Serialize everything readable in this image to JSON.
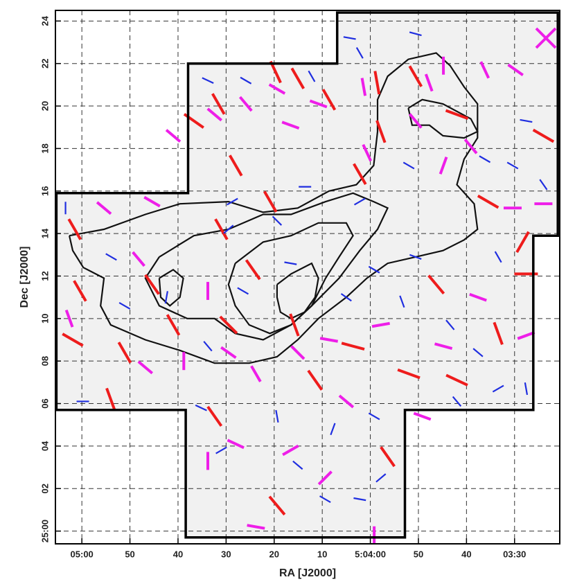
{
  "chart_data": {
    "type": "vector",
    "x_label": "RA [J2000]",
    "y_label": "Dec [J2000]",
    "xlim": [
      305.5,
      200.6
    ],
    "ylim": [
      -0.6,
      24.5
    ],
    "xticks": [
      {
        "value": 300,
        "label": "05:00"
      },
      {
        "value": 290,
        "label": "50"
      },
      {
        "value": 280,
        "label": "40"
      },
      {
        "value": 270,
        "label": "30"
      },
      {
        "value": 260,
        "label": "20"
      },
      {
        "value": 250,
        "label": "10"
      },
      {
        "value": 240,
        "label": "5:04:00"
      },
      {
        "value": 230,
        "label": "50"
      },
      {
        "value": 220,
        "label": "40"
      },
      {
        "value": 210,
        "label": "03:30"
      }
    ],
    "yticks": [
      {
        "value": 0,
        "label": "25:00"
      },
      {
        "value": 2,
        "label": "02"
      },
      {
        "value": 4,
        "label": "04"
      },
      {
        "value": 6,
        "label": "06"
      },
      {
        "value": 8,
        "label": "08"
      },
      10,
      12,
      14,
      16,
      18,
      20,
      22,
      24
    ],
    "grid": true,
    "boundary": {
      "x": [
        305.3,
        277.9,
        277.9,
        246.9,
        246.9,
        201.0,
        201.0,
        206.1,
        206.1,
        232.8,
        232.8,
        278.4,
        278.4,
        305.3
      ],
      "y": [
        15.9,
        15.9,
        22.0,
        22.0,
        24.4,
        24.4,
        13.9,
        13.9,
        5.7,
        5.7,
        -0.3,
        -0.3,
        5.7,
        5.7
      ]
    },
    "contour_color": "#111111",
    "contours": [
      {
        "x": [
          302.6,
          295.4,
          286.8,
          279.6,
          269.5,
          262.3,
          255.1,
          248.6,
          242.9,
          239.3,
          238.5,
          238.5,
          236.4,
          232.1,
          226.3,
          223.4,
          220.5,
          217.7,
          217.7,
          220.5,
          222.0,
          218.4,
          217.7,
          220.5,
          224.9,
          230.6,
          236.4,
          240.7,
          245.0,
          250.8,
          255.1,
          259.4,
          265.2,
          272.4,
          279.6,
          286.8,
          294.0,
          296.1,
          295.4,
          299.7,
          301.9,
          302.6
        ],
        "y": [
          13.9,
          14.2,
          14.9,
          15.4,
          15.5,
          15.0,
          15.2,
          16.0,
          16.3,
          17.2,
          18.8,
          20.3,
          21.4,
          22.2,
          22.5,
          21.9,
          20.9,
          20.1,
          18.5,
          17.5,
          16.3,
          15.4,
          14.2,
          13.7,
          13.2,
          12.9,
          12.6,
          11.9,
          11.0,
          10.0,
          9.0,
          8.2,
          7.9,
          7.9,
          8.5,
          9.0,
          9.7,
          10.6,
          11.9,
          12.4,
          13.2,
          13.9
        ]
      },
      {
        "x": [
          283.9,
          276.7,
          269.5,
          262.3,
          256.5,
          249.3,
          243.6,
          239.3,
          236.4,
          238.5,
          242.2,
          246.5,
          252.2,
          256.5,
          262.3,
          268.1,
          272.4,
          278.1,
          283.9,
          286.8,
          283.9
        ],
        "y": [
          12.9,
          13.9,
          14.2,
          14.9,
          14.9,
          15.5,
          15.9,
          15.5,
          15.2,
          14.2,
          13.2,
          11.9,
          10.6,
          9.7,
          9.0,
          9.3,
          10.0,
          10.0,
          10.6,
          11.9,
          12.9
        ]
      },
      {
        "x": [
          268.1,
          262.3,
          256.5,
          250.8,
          245.0,
          243.6,
          246.5,
          249.3,
          252.2,
          256.5,
          260.9,
          265.2,
          268.1,
          269.5,
          268.1
        ],
        "y": [
          12.6,
          13.6,
          13.9,
          14.5,
          14.5,
          13.9,
          12.9,
          11.9,
          10.6,
          9.7,
          9.3,
          9.7,
          10.6,
          11.6,
          12.6
        ]
      },
      {
        "x": [
          259.4,
          256.5,
          252.2,
          250.8,
          251.5,
          253.7,
          256.5,
          258.7,
          259.4,
          259.4
        ],
        "y": [
          11.6,
          12.1,
          12.6,
          11.9,
          11.0,
          10.3,
          10.0,
          10.3,
          11.0,
          11.6
        ]
      },
      {
        "x": [
          232.1,
          229.2,
          224.9,
          219.1,
          217.7,
          220.5,
          224.9,
          227.7,
          231.3,
          232.1
        ],
        "y": [
          19.9,
          20.3,
          20.1,
          19.4,
          18.8,
          18.5,
          18.6,
          19.1,
          19.1,
          19.9
        ]
      },
      {
        "x": [
          283.9,
          281.0,
          278.9,
          279.6,
          281.7,
          283.6,
          283.9
        ],
        "y": [
          11.9,
          12.3,
          11.9,
          11.0,
          10.6,
          11.0,
          11.9
        ]
      }
    ],
    "series": [
      {
        "color": "#ee1c1c",
        "x": [
          259.7,
          255.1,
          276.7,
          271.6,
          268.0,
          260.8,
          248.6,
          238.6,
          237.8,
          242.2,
          230.6,
          222.0,
          215.5,
          208.3,
          204.0,
          301.5,
          300.4,
          301.9,
          291.1,
          294.0,
          281.0,
          271.0,
          264.4,
          269.5,
          255.8,
          251.5,
          243.6,
          232.0,
          226.3,
          222.0,
          213.4,
          236.4,
          259.4,
          272.4,
          285.4,
          207.6
        ],
        "y": [
          21.6,
          21.3,
          19.3,
          20.1,
          17.2,
          15.5,
          20.3,
          21.1,
          18.8,
          16.8,
          21.4,
          19.6,
          15.5,
          13.6,
          18.6,
          14.2,
          11.3,
          9.0,
          8.4,
          6.2,
          9.7,
          14.2,
          12.3,
          9.7,
          9.7,
          7.1,
          8.7,
          7.4,
          11.6,
          7.1,
          9.3,
          3.5,
          1.2,
          5.4,
          11.6,
          12.1
        ],
        "angle": [
          115,
          120,
          145,
          120,
          120,
          120,
          120,
          100,
          110,
          120,
          120,
          160,
          150,
          60,
          150,
          120,
          120,
          150,
          120,
          110,
          120,
          120,
          125,
          135,
          110,
          125,
          165,
          160,
          130,
          155,
          110,
          125,
          130,
          125,
          125,
          0
        ]
      },
      {
        "color": "#ee1ee8",
        "x": [
          272.4,
          265.9,
          259.4,
          250.8,
          241.4,
          227.8,
          224.8,
          216.2,
          209.8,
          230.6,
          219.1,
          240.7,
          256.6,
          281.0,
          295.4,
          285.4,
          288.2,
          273.8,
          278.8,
          286.8,
          302.6,
          269.5,
          263.8,
          255.1,
          248.6,
          237.8,
          224.8,
          217.6,
          207.6,
          210.4,
          204.0,
          229.2,
          273.8,
          268.0,
          263.8,
          249.4,
          245.0,
          239.2,
          256.6,
          224.8
        ],
        "y": [
          19.6,
          20.1,
          20.8,
          20.1,
          20.9,
          21.1,
          21.9,
          21.7,
          21.7,
          19.3,
          18.1,
          17.8,
          19.1,
          18.6,
          15.2,
          15.5,
          12.8,
          11.3,
          8.0,
          7.7,
          10.0,
          8.4,
          7.4,
          8.4,
          9.0,
          9.7,
          8.7,
          11.0,
          9.2,
          15.2,
          15.4,
          5.4,
          3.3,
          4.1,
          0.2,
          2.5,
          6.1,
          -0.2,
          3.8,
          17.2
        ],
        "angle": [
          140,
          130,
          150,
          160,
          100,
          110,
          90,
          115,
          145,
          130,
          130,
          115,
          160,
          140,
          140,
          150,
          130,
          90,
          90,
          140,
          110,
          145,
          120,
          135,
          170,
          10,
          165,
          160,
          20,
          0,
          0,
          160,
          90,
          155,
          170,
          45,
          140,
          90,
          30,
          70
        ]
      },
      {
        "color": "#1f2ee0",
        "x": [
          244.3,
          242.2,
          230.6,
          265.9,
          273.8,
          252.2,
          268.7,
          259.4,
          253.6,
          242.2,
          232.0,
          216.2,
          210.4,
          204.0,
          207.6,
          213.4,
          230.6,
          239.2,
          245.0,
          233.4,
          223.4,
          217.6,
          213.4,
          207.6,
          222.0,
          239.2,
          247.8,
          259.4,
          275.2,
          273.8,
          282.4,
          291.1,
          303.4,
          293.9,
          299.8,
          269.5,
          256.6,
          249.4,
          242.2,
          237.8,
          271.0,
          255.1,
          266.5
        ],
        "y": [
          23.2,
          22.5,
          23.4,
          21.2,
          21.2,
          21.4,
          15.5,
          14.6,
          16.2,
          15.5,
          17.2,
          17.5,
          17.2,
          16.3,
          19.3,
          12.9,
          12.9,
          12.3,
          11.0,
          10.8,
          9.7,
          8.4,
          6.7,
          6.7,
          6.1,
          5.4,
          4.8,
          5.4,
          5.8,
          8.7,
          11.0,
          10.6,
          15.2,
          12.9,
          6.1,
          14.2,
          12.6,
          1.5,
          1.5,
          2.5,
          3.8,
          3.1,
          11.3
        ],
        "angle": [
          170,
          120,
          165,
          150,
          155,
          120,
          30,
          135,
          180,
          30,
          150,
          150,
          150,
          125,
          170,
          120,
          160,
          150,
          145,
          110,
          130,
          140,
          30,
          100,
          130,
          150,
          70,
          100,
          155,
          130,
          80,
          150,
          90,
          150,
          0,
          40,
          170,
          150,
          170,
          40,
          30,
          140,
          150
        ]
      }
    ]
  }
}
